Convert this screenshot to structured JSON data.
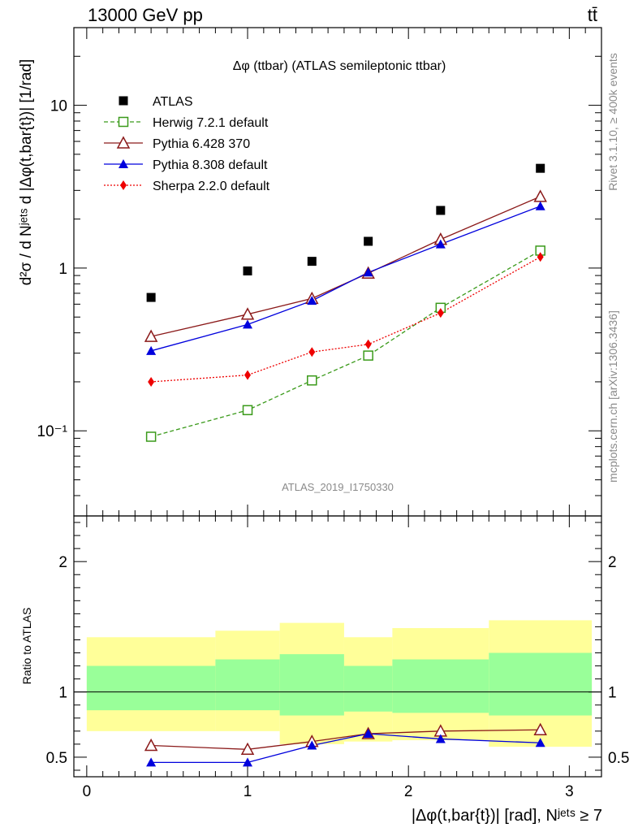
{
  "header": {
    "left": "13000 GeV pp",
    "right": "tt̄"
  },
  "side": {
    "upper": "Rivet 3.1.10, ≥ 400k events",
    "lower": "mcplots.cern.ch [arXiv:1306.3436]"
  },
  "watermark": "ATLAS_2019_I1750330",
  "chart_data": [
    {
      "type": "scatter",
      "title": "Δφ (ttbar) (ATLAS semileptonic ttbar)",
      "ylabel": "d²σ / d Nʲᵉᵗˢ d |Δφ(t,bar{t})| [1/rad]",
      "ylog": true,
      "ylim": [
        0.03,
        30
      ],
      "xlim": [
        -0.08,
        3.2
      ],
      "yticklabels": [
        "10⁻¹",
        "1",
        "10"
      ],
      "legend_position": "top-left",
      "series": [
        {
          "name": "ATLAS",
          "marker": "square-filled",
          "color": "#000000",
          "x": [
            0.4,
            1.0,
            1.4,
            1.75,
            2.2,
            2.82
          ],
          "y": [
            0.66,
            0.96,
            1.1,
            1.46,
            2.26,
            4.1
          ]
        },
        {
          "name": "Herwig 7.2.1 default",
          "marker": "square-open",
          "line": "dashed",
          "color": "#3a9a1a",
          "x": [
            0.4,
            1.0,
            1.4,
            1.75,
            2.2,
            2.82
          ],
          "y": [
            0.092,
            0.134,
            0.204,
            0.29,
            0.57,
            1.28
          ]
        },
        {
          "name": "Pythia 6.428 370",
          "marker": "triangle-open",
          "line": "solid",
          "color": "#8b1a1a",
          "x": [
            0.4,
            1.0,
            1.4,
            1.75,
            2.2,
            2.82
          ],
          "y": [
            0.38,
            0.52,
            0.65,
            0.93,
            1.5,
            2.75
          ]
        },
        {
          "name": "Pythia 8.308 default",
          "marker": "triangle-filled",
          "line": "solid",
          "color": "#0000dd",
          "x": [
            0.4,
            1.0,
            1.4,
            1.75,
            2.2,
            2.82
          ],
          "y": [
            0.31,
            0.45,
            0.63,
            0.94,
            1.4,
            2.4
          ]
        },
        {
          "name": "Sherpa 2.2.0 default",
          "marker": "diamond-filled",
          "line": "dotted",
          "color": "#ee0000",
          "x": [
            0.4,
            1.0,
            1.4,
            1.75,
            2.2,
            2.82
          ],
          "y": [
            0.2,
            0.22,
            0.305,
            0.34,
            0.53,
            1.17
          ]
        }
      ]
    },
    {
      "type": "scatter",
      "ylabel": "Ratio to ATLAS",
      "xlabel": "|Δφ(t,bar{t})| [rad], Nʲᵉᵗˢ ≥ 7",
      "ylim": [
        0.35,
        2.35
      ],
      "xlim": [
        -0.08,
        3.2
      ],
      "xticklabels": [
        "0",
        "1",
        "2",
        "3"
      ],
      "yticklabels": [
        "0.5",
        "1",
        "2"
      ],
      "reference_line": 1,
      "bins": [
        0.0,
        0.8,
        1.2,
        1.6,
        1.9,
        2.5,
        3.14
      ],
      "band_outer": [
        [
          0.7,
          1.42
        ],
        [
          0.7,
          1.47
        ],
        [
          0.6,
          1.53
        ],
        [
          0.62,
          1.42
        ],
        [
          0.63,
          1.49
        ],
        [
          0.58,
          1.55
        ]
      ],
      "band_inner": [
        [
          0.86,
          1.2
        ],
        [
          0.86,
          1.25
        ],
        [
          0.82,
          1.29
        ],
        [
          0.85,
          1.2
        ],
        [
          0.84,
          1.25
        ],
        [
          0.82,
          1.3
        ]
      ],
      "band_colors": {
        "outer": "#ffff99",
        "inner": "#99ff99"
      },
      "series": [
        {
          "name": "Pythia 6.428 370",
          "marker": "triangle-open",
          "line": "solid",
          "color": "#8b1a1a",
          "x": [
            0.4,
            1.0,
            1.4,
            1.75,
            2.2,
            2.82
          ],
          "y": [
            0.59,
            0.56,
            0.62,
            0.68,
            0.7,
            0.71
          ]
        },
        {
          "name": "Pythia 8.308 default",
          "marker": "triangle-filled",
          "line": "solid",
          "color": "#0000dd",
          "x": [
            0.4,
            1.0,
            1.4,
            1.75,
            2.2,
            2.82
          ],
          "y": [
            0.46,
            0.46,
            0.59,
            0.68,
            0.64,
            0.61
          ]
        }
      ]
    }
  ]
}
